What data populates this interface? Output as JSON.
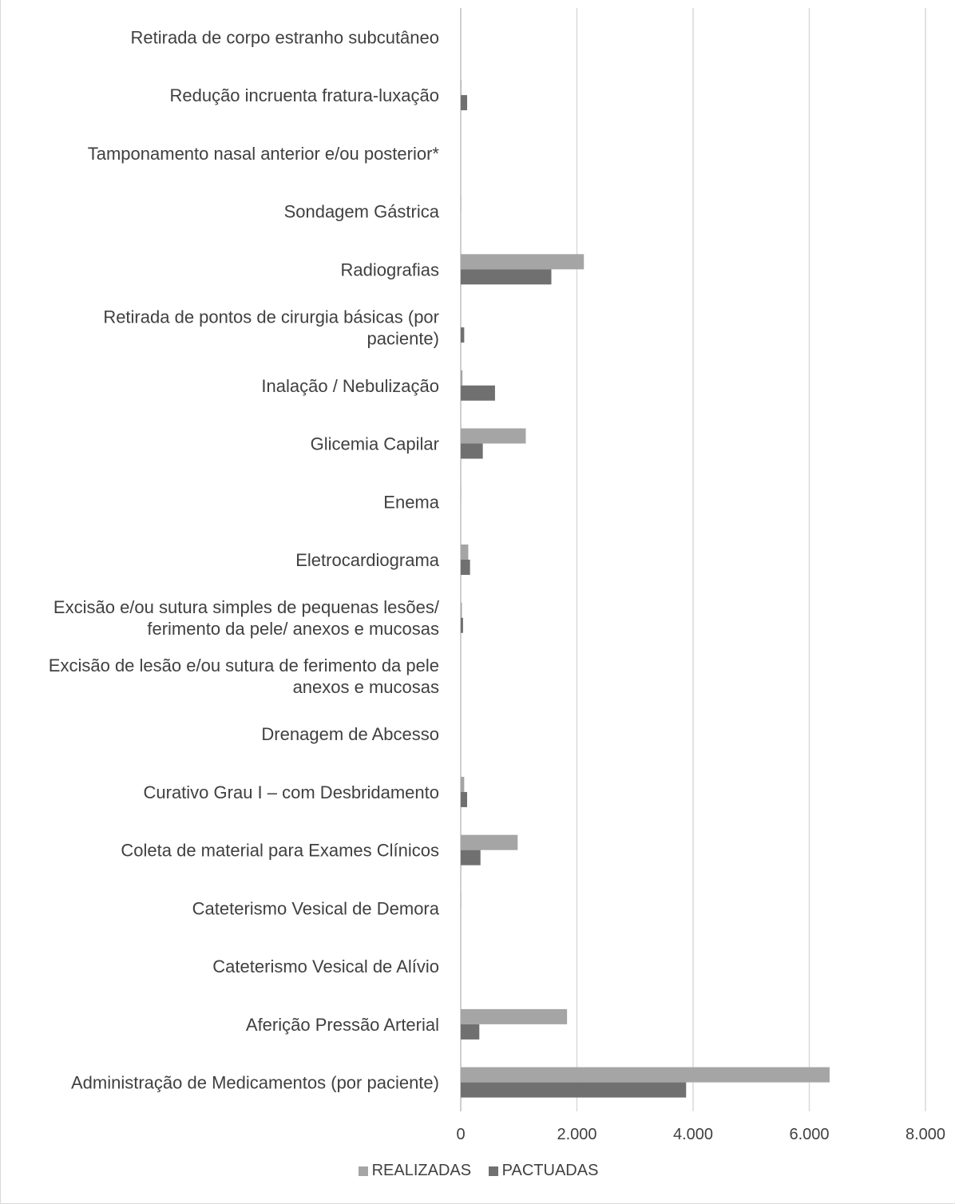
{
  "chart_data": {
    "type": "bar",
    "orientation": "horizontal",
    "categories": [
      "Administração de Medicamentos (por paciente)",
      "Aferição Pressão Arterial",
      "Cateterismo Vesical de Alívio",
      "Cateterismo Vesical de Demora",
      "Coleta de material para Exames Clínicos",
      "Curativo Grau I – com Desbridamento",
      "Drenagem de Abcesso",
      "Excisão de lesão e/ou sutura de ferimento da pele anexos e mucosas",
      "Excisão e/ou sutura simples de pequenas lesões/ ferimento da pele/ anexos e mucosas",
      "Eletrocardiograma",
      "Enema",
      "Glicemia Capilar",
      "Inalação / Nebulização",
      "Retirada de pontos de cirurgia básicas (por paciente)",
      "Radiografias",
      "Sondagem Gástrica",
      "Tamponamento nasal anterior e/ou posterior*",
      "Redução incruenta fratura-luxação",
      "Retirada de corpo estranho subcutâneo"
    ],
    "category_lines": [
      [
        "Administração de Medicamentos (por paciente)"
      ],
      [
        "Aferição Pressão Arterial"
      ],
      [
        "Cateterismo Vesical de Alívio"
      ],
      [
        "Cateterismo Vesical de Demora"
      ],
      [
        "Coleta de material para Exames Clínicos"
      ],
      [
        "Curativo Grau I – com Desbridamento"
      ],
      [
        "Drenagem de Abcesso"
      ],
      [
        "Excisão de lesão e/ou sutura de ferimento da pele",
        "anexos e mucosas"
      ],
      [
        "Excisão e/ou sutura simples de pequenas lesões/",
        "ferimento da pele/ anexos e mucosas"
      ],
      [
        "Eletrocardiograma"
      ],
      [
        "Enema"
      ],
      [
        "Glicemia Capilar"
      ],
      [
        "Inalação / Nebulização"
      ],
      [
        "Retirada de pontos de cirurgia básicas (por",
        "paciente)"
      ],
      [
        "Radiografias"
      ],
      [
        "Sondagem Gástrica"
      ],
      [
        "Tamponamento nasal anterior e/ou posterior*"
      ],
      [
        "Redução incruenta fratura-luxação"
      ],
      [
        "Retirada de corpo estranho subcutâneo"
      ]
    ],
    "series": [
      {
        "name": "REALIZADAS",
        "color": "#a5a5a5",
        "values": [
          6350,
          1830,
          0,
          5,
          980,
          60,
          0,
          0,
          20,
          130,
          5,
          1120,
          30,
          0,
          2120,
          5,
          0,
          10,
          0
        ]
      },
      {
        "name": "PACTUADAS",
        "color": "#707070",
        "values": [
          3880,
          320,
          0,
          0,
          340,
          110,
          0,
          0,
          40,
          160,
          0,
          380,
          590,
          60,
          1560,
          0,
          0,
          110,
          0
        ]
      }
    ],
    "xlim": [
      0,
      8000
    ],
    "xticks": [
      0,
      2000,
      4000,
      6000,
      8000
    ],
    "xtick_labels": [
      "0",
      "2.000",
      "4.000",
      "6.000",
      "8.000"
    ],
    "grid": true,
    "legend_position": "bottom",
    "title": "",
    "xlabel": "",
    "ylabel": ""
  }
}
